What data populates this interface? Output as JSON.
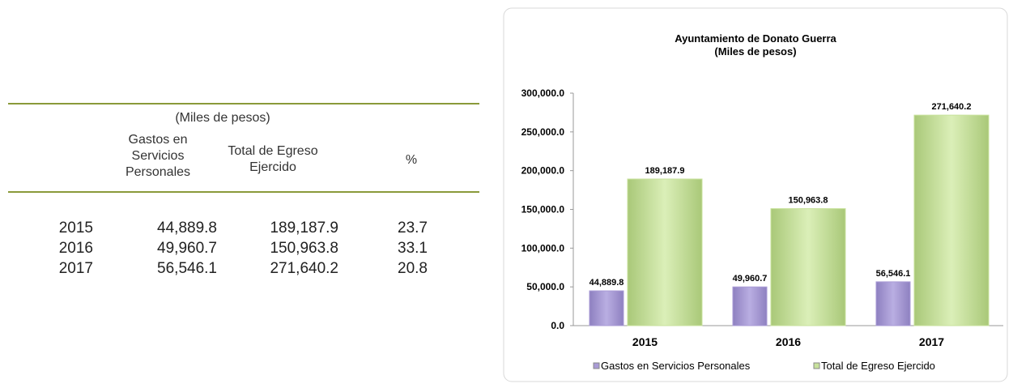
{
  "table": {
    "caption": "(Miles de pesos)",
    "headers": [
      "Gastos en Servicios Personales",
      "Total de Egreso Ejercido",
      "%"
    ],
    "rows": [
      [
        "2015",
        "44,889.8",
        "189,187.9",
        "23.7"
      ],
      [
        "2016",
        "49,960.7",
        "150,963.8",
        "33.1"
      ],
      [
        "2017",
        "56,546.1",
        "271,640.2",
        "20.8"
      ]
    ]
  },
  "chart_data": {
    "type": "bar",
    "title": "Ayuntamiento de Donato Guerra",
    "subtitle": "(Miles de pesos)",
    "categories": [
      "2015",
      "2016",
      "2017"
    ],
    "series": [
      {
        "name": "Gastos en Servicios Personales",
        "color": "#a99bd6",
        "values": [
          44889.8,
          49960.7,
          56546.1
        ],
        "value_labels": [
          "44,889.8",
          "49,960.7",
          "56,546.1"
        ]
      },
      {
        "name": "Total de Egreso Ejercido",
        "color": "#c8e29c",
        "values": [
          189187.9,
          150963.8,
          271640.2
        ],
        "value_labels": [
          "189,187.9",
          "150,963.8",
          "271,640.2"
        ]
      }
    ],
    "ylim": [
      0,
      300000
    ],
    "yticks": [
      {
        "value": 0,
        "label": "0.0"
      },
      {
        "value": 50000,
        "label": "50,000.0"
      },
      {
        "value": 100000,
        "label": "100,000.0"
      },
      {
        "value": 150000,
        "label": "150,000.0"
      },
      {
        "value": 200000,
        "label": "200,000.0"
      },
      {
        "value": 250000,
        "label": "250,000.0"
      },
      {
        "value": 300000,
        "label": "300,000.0"
      }
    ],
    "legend": "bottom"
  }
}
